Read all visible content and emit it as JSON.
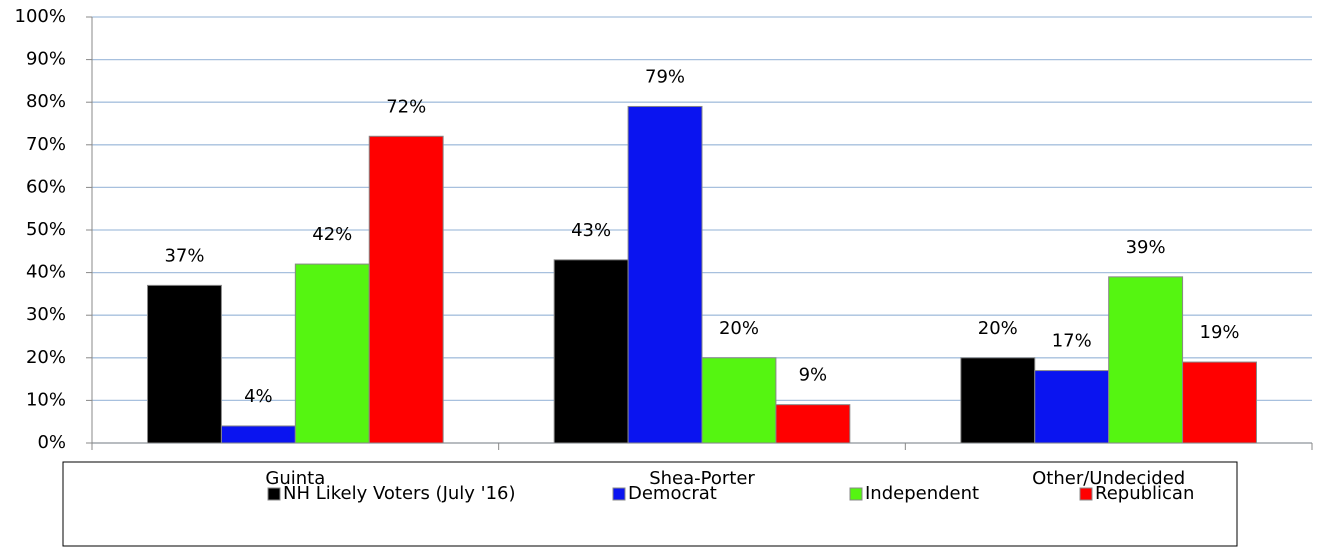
{
  "chart_data": {
    "type": "bar",
    "categories": [
      "Guinta",
      "Shea-Porter",
      "Other/Undecided"
    ],
    "series": [
      {
        "name": "NH Likely Voters (July '16)",
        "color": "#000000",
        "values": [
          37,
          43,
          20
        ],
        "value_labels": [
          "37%",
          "43%",
          "20%"
        ]
      },
      {
        "name": "Democrat",
        "color": "#0a14f0",
        "values": [
          4,
          79,
          17
        ],
        "value_labels": [
          "4%",
          "79%",
          "17%"
        ]
      },
      {
        "name": "Independent",
        "color": "#55f511",
        "values": [
          42,
          20,
          39
        ],
        "value_labels": [
          "42%",
          "20%",
          "39%"
        ]
      },
      {
        "name": "Republican",
        "color": "#ff0000",
        "values": [
          72,
          9,
          19
        ],
        "value_labels": [
          "72%",
          "9%",
          "19%"
        ]
      }
    ],
    "ylim": [
      0,
      100
    ],
    "yticks": [
      {
        "value": 0,
        "label": "0%"
      },
      {
        "value": 10,
        "label": "10%"
      },
      {
        "value": 20,
        "label": "20%"
      },
      {
        "value": 30,
        "label": "30%"
      },
      {
        "value": 40,
        "label": "40%"
      },
      {
        "value": 50,
        "label": "50%"
      },
      {
        "value": 60,
        "label": "60%"
      },
      {
        "value": 70,
        "label": "70%"
      },
      {
        "value": 80,
        "label": "80%"
      },
      {
        "value": 90,
        "label": "90%"
      },
      {
        "value": 100,
        "label": "100%"
      }
    ],
    "grid": true,
    "legend": "bottom"
  }
}
